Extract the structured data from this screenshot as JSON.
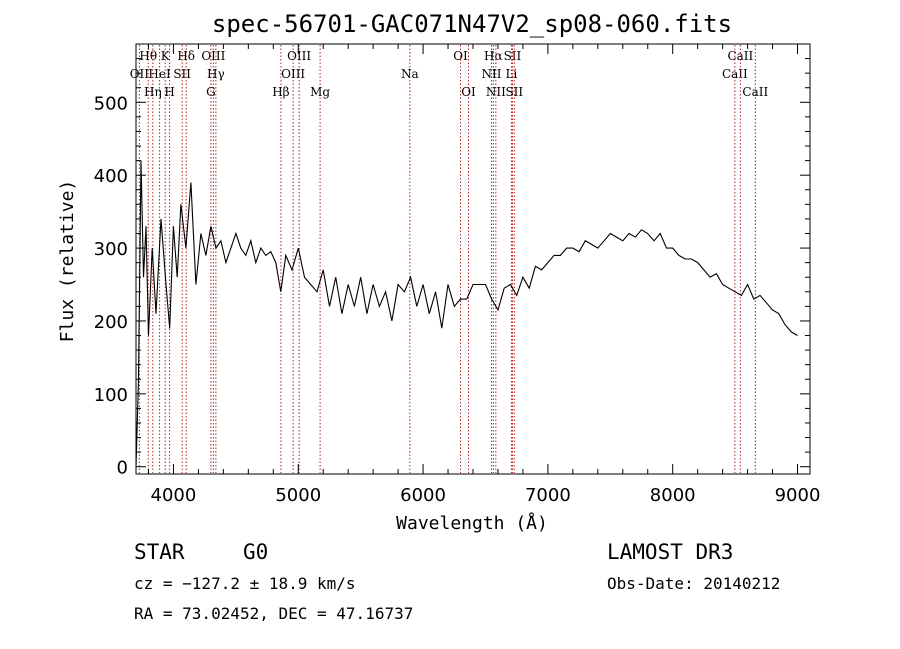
{
  "chart_data": {
    "type": "line",
    "title": "spec-56701-GAC071N47V2_sp08-060.fits",
    "xlabel": "Wavelength (Å)",
    "ylabel": "Flux (relative)",
    "xlim": [
      3700,
      9100
    ],
    "ylim": [
      -10,
      580
    ],
    "xticks": [
      4000,
      5000,
      6000,
      7000,
      8000,
      9000
    ],
    "yticks": [
      0,
      100,
      200,
      300,
      400,
      500
    ],
    "line_color": "#000000",
    "marker_color": "#b22222",
    "spectrum": {
      "name": "flux",
      "x": [
        3700,
        3720,
        3740,
        3760,
        3780,
        3800,
        3830,
        3860,
        3900,
        3940,
        3970,
        4000,
        4030,
        4060,
        4100,
        4140,
        4180,
        4220,
        4260,
        4300,
        4340,
        4380,
        4420,
        4460,
        4500,
        4540,
        4580,
        4620,
        4660,
        4700,
        4740,
        4780,
        4820,
        4860,
        4900,
        4950,
        5000,
        5050,
        5100,
        5150,
        5200,
        5250,
        5300,
        5350,
        5400,
        5450,
        5500,
        5550,
        5600,
        5650,
        5700,
        5750,
        5800,
        5850,
        5900,
        5950,
        6000,
        6050,
        6100,
        6150,
        6200,
        6250,
        6300,
        6350,
        6400,
        6450,
        6500,
        6550,
        6600,
        6650,
        6700,
        6750,
        6800,
        6850,
        6900,
        6950,
        7000,
        7050,
        7100,
        7150,
        7200,
        7250,
        7300,
        7350,
        7400,
        7450,
        7500,
        7550,
        7600,
        7650,
        7700,
        7750,
        7800,
        7850,
        7900,
        7950,
        8000,
        8050,
        8100,
        8150,
        8200,
        8250,
        8300,
        8350,
        8400,
        8450,
        8500,
        8550,
        8600,
        8650,
        8700,
        8750,
        8800,
        8850,
        8900,
        8950,
        9000
      ],
      "y": [
        0,
        120,
        420,
        260,
        330,
        180,
        300,
        210,
        340,
        250,
        190,
        330,
        260,
        360,
        300,
        390,
        250,
        320,
        290,
        330,
        300,
        310,
        280,
        300,
        320,
        300,
        290,
        310,
        280,
        300,
        290,
        295,
        280,
        240,
        290,
        270,
        300,
        260,
        250,
        240,
        270,
        220,
        260,
        210,
        250,
        220,
        260,
        210,
        250,
        220,
        240,
        200,
        250,
        240,
        260,
        220,
        250,
        210,
        240,
        190,
        250,
        220,
        230,
        230,
        250,
        250,
        250,
        230,
        215,
        245,
        250,
        235,
        260,
        245,
        275,
        270,
        280,
        290,
        290,
        300,
        300,
        295,
        310,
        305,
        300,
        310,
        320,
        315,
        310,
        320,
        315,
        325,
        320,
        310,
        320,
        300,
        300,
        290,
        285,
        285,
        280,
        270,
        260,
        265,
        250,
        245,
        240,
        235,
        250,
        230,
        235,
        225,
        215,
        210,
        195,
        185,
        180
      ]
    },
    "line_markers": [
      {
        "label": "OII",
        "x": 3727,
        "row": 1
      },
      {
        "label": "Hθ",
        "x": 3798,
        "row": 0
      },
      {
        "label": "Hη",
        "x": 3835,
        "row": 2
      },
      {
        "label": "HeI",
        "x": 3889,
        "row": 1
      },
      {
        "label": "K",
        "x": 3934,
        "row": 0
      },
      {
        "label": "H",
        "x": 3969,
        "row": 2
      },
      {
        "label": "SII",
        "x": 4070,
        "row": 1
      },
      {
        "label": "Hδ",
        "x": 4102,
        "row": 0
      },
      {
        "label": "OIII",
        "x": 4320,
        "row": 0
      },
      {
        "label": "Hγ",
        "x": 4340,
        "row": 1
      },
      {
        "label": "G",
        "x": 4300,
        "row": 2
      },
      {
        "label": "Hβ",
        "x": 4861,
        "row": 2
      },
      {
        "label": "OIII",
        "x": 4959,
        "row": 1
      },
      {
        "label": "OIII",
        "x": 5007,
        "row": 0
      },
      {
        "label": "Mg",
        "x": 5175,
        "row": 2
      },
      {
        "label": "Na",
        "x": 5894,
        "row": 1
      },
      {
        "label": "OI",
        "x": 6300,
        "row": 0
      },
      {
        "label": "OI",
        "x": 6364,
        "row": 2
      },
      {
        "label": "NII",
        "x": 6548,
        "row": 1
      },
      {
        "label": "Hα",
        "x": 6563,
        "row": 0
      },
      {
        "label": "NII",
        "x": 6583,
        "row": 2
      },
      {
        "label": "Li",
        "x": 6708,
        "row": 1
      },
      {
        "label": "SII",
        "x": 6716,
        "row": 0
      },
      {
        "label": "SII",
        "x": 6731,
        "row": 2
      },
      {
        "label": "CaII",
        "x": 8498,
        "row": 1
      },
      {
        "label": "CaII",
        "x": 8542,
        "row": 0
      },
      {
        "label": "CaII",
        "x": 8662,
        "row": 2
      }
    ]
  },
  "footer": {
    "object_class": "STAR",
    "subclass": "G0",
    "survey": "LAMOST DR3",
    "cz": "cz = −127.2 ± 18.9 km/s",
    "obs_date": "Obs-Date: 20140212",
    "coords": "RA =  73.02452, DEC =  47.16737"
  }
}
